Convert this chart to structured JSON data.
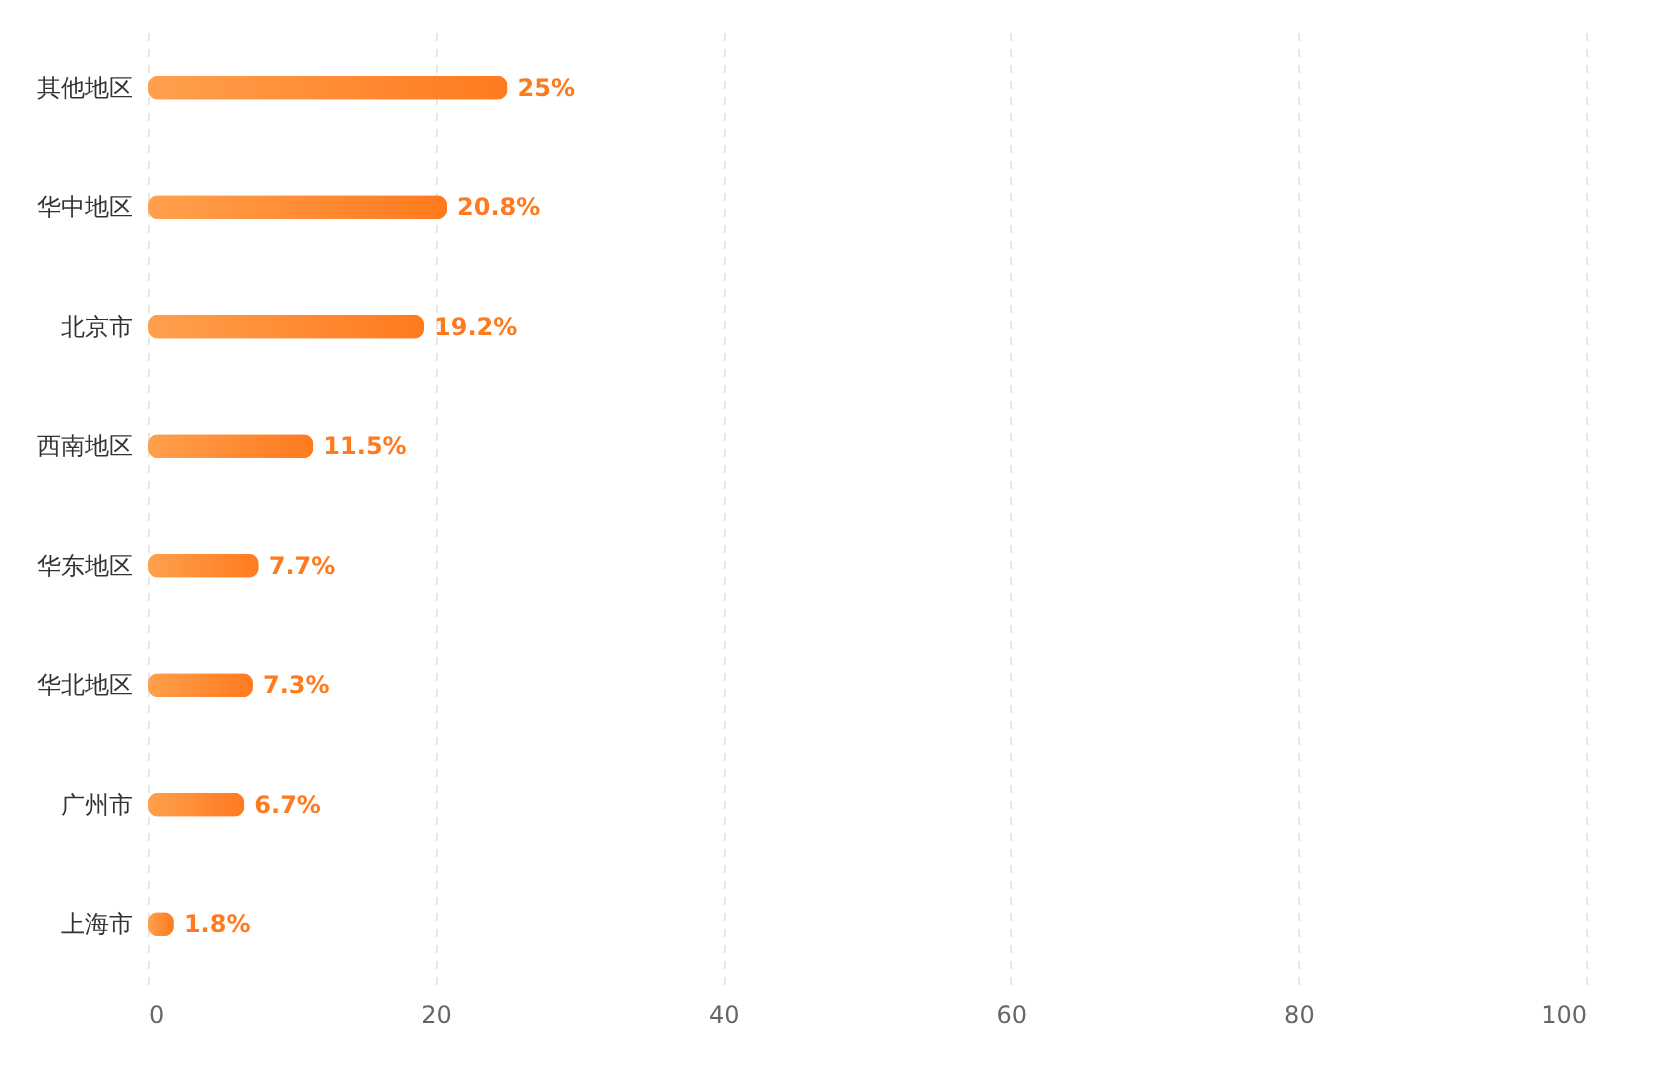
{
  "chart_data": {
    "type": "bar",
    "orientation": "horizontal",
    "categories": [
      "其他地区",
      "华中地区",
      "北京市",
      "西南地区",
      "华东地区",
      "华北地区",
      "广州市",
      "上海市"
    ],
    "values": [
      25,
      20.8,
      19.2,
      11.5,
      7.7,
      7.3,
      6.7,
      1.8
    ],
    "color": "#ff7a1f",
    "xlim": [
      0,
      100
    ],
    "xticks": [
      0,
      20,
      40,
      60,
      80,
      100
    ],
    "grid": "x",
    "value_labels": [
      "25%",
      "20.8%",
      "19.2%",
      "11.5%",
      "7.7%",
      "7.3%",
      "6.7%",
      "1.8%"
    ]
  }
}
